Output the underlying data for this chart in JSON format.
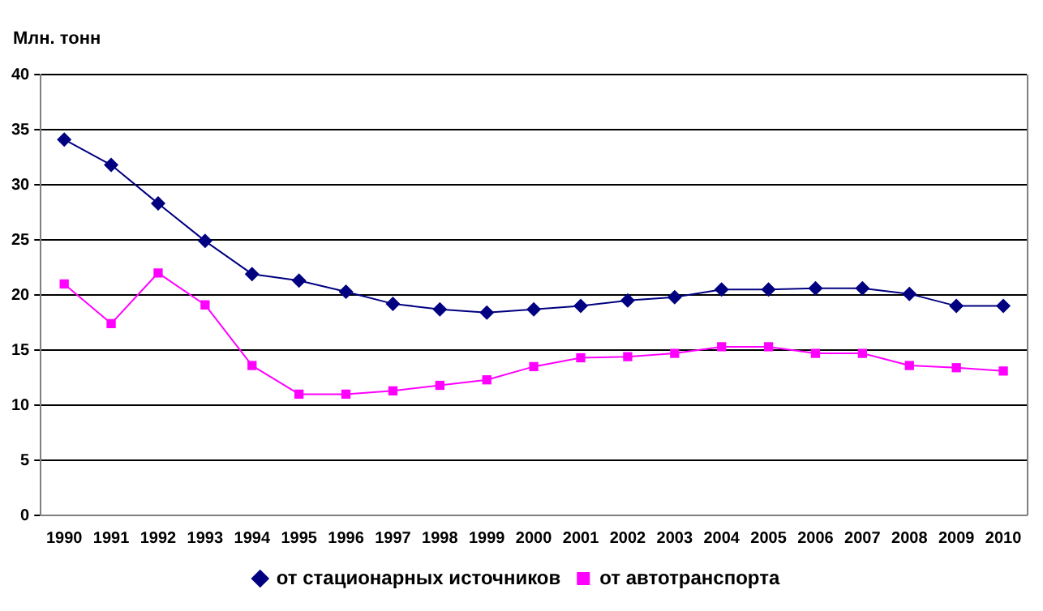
{
  "chart_data": {
    "type": "line",
    "ylabel": "Млн. тонн",
    "categories": [
      "1990",
      "1991",
      "1992",
      "1993",
      "1994",
      "1995",
      "1996",
      "1997",
      "1998",
      "1999",
      "2000",
      "2001",
      "2002",
      "2003",
      "2004",
      "2005",
      "2006",
      "2007",
      "2008",
      "2009",
      "2010"
    ],
    "series": [
      {
        "name": "от стационарных источников",
        "color": "#000080",
        "marker": "diamond",
        "values": [
          34.1,
          31.8,
          28.3,
          24.9,
          21.9,
          21.3,
          20.3,
          19.2,
          18.7,
          18.4,
          18.7,
          19.0,
          19.5,
          19.8,
          20.5,
          20.5,
          20.6,
          20.6,
          20.1,
          19.0,
          19.0
        ]
      },
      {
        "name": "от автотранспорта",
        "color": "#ff00ff",
        "marker": "square",
        "values": [
          21.0,
          17.4,
          22.0,
          19.1,
          13.6,
          11.0,
          11.0,
          11.3,
          11.8,
          12.3,
          13.5,
          14.3,
          14.4,
          14.7,
          15.3,
          15.3,
          14.7,
          14.7,
          13.6,
          13.4,
          13.1
        ]
      }
    ],
    "ylim": [
      0,
      40
    ],
    "yticks": [
      0,
      5,
      10,
      15,
      20,
      25,
      30,
      35,
      40
    ],
    "grid": "y",
    "legend": "bottom"
  }
}
